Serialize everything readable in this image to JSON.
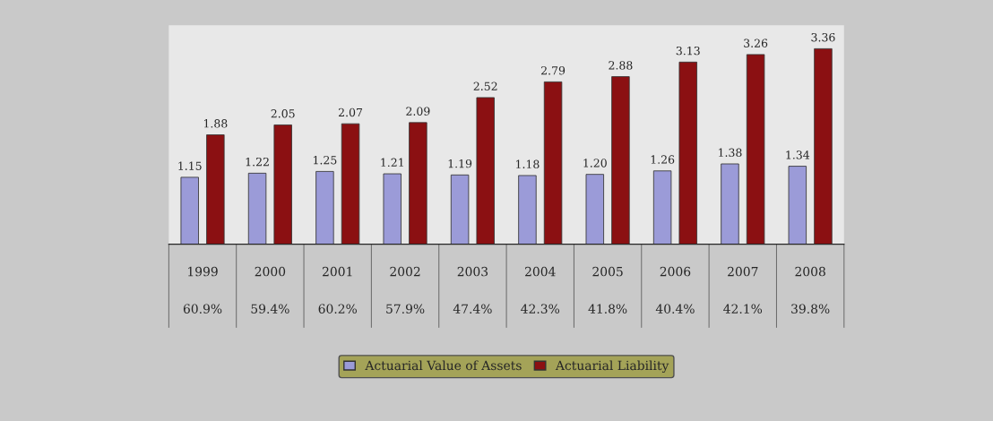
{
  "chart_data": {
    "type": "bar",
    "categories": [
      "1999",
      "2000",
      "2001",
      "2002",
      "2003",
      "2004",
      "2005",
      "2006",
      "2007",
      "2008"
    ],
    "series": [
      {
        "name": "Actuarial Value of Assets",
        "color": "#9b9bd8",
        "values": [
          1.15,
          1.22,
          1.25,
          1.21,
          1.19,
          1.18,
          1.2,
          1.26,
          1.38,
          1.34
        ],
        "value_labels": [
          "1.15",
          "1.22",
          "1.25",
          "1.21",
          "1.19",
          "1.18",
          "1.20",
          "1.26",
          "1.38",
          "1.34"
        ]
      },
      {
        "name": "Actuarial Liability",
        "color": "#8b1012",
        "values": [
          1.88,
          2.05,
          2.07,
          2.09,
          2.52,
          2.79,
          2.88,
          3.13,
          3.26,
          3.36
        ],
        "value_labels": [
          "1.88",
          "2.05",
          "2.07",
          "2.09",
          "2.52",
          "2.79",
          "2.88",
          "3.13",
          "3.26",
          "3.36"
        ]
      }
    ],
    "annotations": [
      "60.9%",
      "59.4%",
      "60.2%",
      "57.9%",
      "47.4%",
      "42.3%",
      "41.8%",
      "40.4%",
      "42.1%",
      "39.8%"
    ],
    "legend": "bottom",
    "grid": false,
    "tick_labels": "x"
  }
}
